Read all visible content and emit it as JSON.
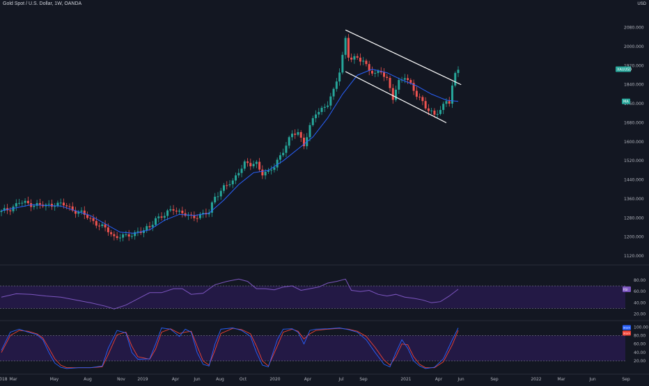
{
  "header": {
    "title": "Gold Spot / U.S. Dollar, 1W, OANDA",
    "currency": "USD"
  },
  "colors": {
    "background": "#131722",
    "up": "#26a69a",
    "down": "#ef5350",
    "ma": "#2962ff",
    "rsi_line": "#7e57c2",
    "rsi_band": "#311b62",
    "stoch_k": "#2962ff",
    "stoch_d": "#f44336",
    "channel": "#ffffff",
    "price_tag": "#26a69a"
  },
  "chart_data": [
    {
      "type": "candlestick",
      "title": "Gold Spot / U.S. Dollar, 1W, OANDA",
      "y_ticks": [
        "2080.000",
        "2000.000",
        "1920.000",
        "1840.000",
        "1760.000",
        "1680.000",
        "1600.000",
        "1520.000",
        "1440.000",
        "1360.000",
        "1280.000",
        "1200.000",
        "1120.000"
      ],
      "y_tick_values": [
        2080,
        2000,
        1920,
        1840,
        1760,
        1680,
        1600,
        1520,
        1440,
        1360,
        1280,
        1200,
        1120
      ],
      "ylim": [
        1085,
        2155
      ],
      "x_ticks": [
        "2018",
        "Mar",
        "May",
        "Aug",
        "Nov",
        "2019",
        "Apr",
        "Jun",
        "Aug",
        "Oct",
        "2020",
        "Apr",
        "Jul",
        "Sep",
        "2021",
        "Apr",
        "Jun",
        "Sep",
        "2022",
        "Mar",
        "Jun",
        "Sep"
      ],
      "close_path": [
        [
          0,
          1305
        ],
        [
          3,
          1320
        ],
        [
          6,
          1345
        ],
        [
          9,
          1340
        ],
        [
          12,
          1335
        ],
        [
          15,
          1330
        ],
        [
          18,
          1340
        ],
        [
          21,
          1335
        ],
        [
          24,
          1315
        ],
        [
          27,
          1300
        ],
        [
          30,
          1275
        ],
        [
          33,
          1250
        ],
        [
          36,
          1225
        ],
        [
          38,
          1200
        ],
        [
          40,
          1205
        ],
        [
          42,
          1200
        ],
        [
          44,
          1210
        ],
        [
          46,
          1225
        ],
        [
          48,
          1225
        ],
        [
          50,
          1240
        ],
        [
          52,
          1280
        ],
        [
          55,
          1290
        ],
        [
          58,
          1320
        ],
        [
          61,
          1300
        ],
        [
          64,
          1280
        ],
        [
          67,
          1295
        ],
        [
          70,
          1300
        ],
        [
          72,
          1370
        ],
        [
          75,
          1410
        ],
        [
          78,
          1430
        ],
        [
          80,
          1480
        ],
        [
          82,
          1510
        ],
        [
          84,
          1500
        ],
        [
          86,
          1510
        ],
        [
          88,
          1470
        ],
        [
          90,
          1470
        ],
        [
          92,
          1495
        ],
        [
          94,
          1545
        ],
        [
          96,
          1585
        ],
        [
          98,
          1630
        ],
        [
          100,
          1640
        ],
        [
          102,
          1590
        ],
        [
          104,
          1660
        ],
        [
          106,
          1720
        ],
        [
          108,
          1740
        ],
        [
          110,
          1760
        ],
        [
          112,
          1810
        ],
        [
          114,
          1900
        ],
        [
          115,
          1965
        ],
        [
          116,
          2035
        ],
        [
          117,
          1960
        ],
        [
          118,
          1945
        ],
        [
          120,
          1950
        ],
        [
          122,
          1945
        ],
        [
          124,
          1900
        ],
        [
          126,
          1880
        ],
        [
          128,
          1900
        ],
        [
          130,
          1865
        ],
        [
          132,
          1780
        ],
        [
          134,
          1850
        ],
        [
          136,
          1880
        ],
        [
          138,
          1840
        ],
        [
          140,
          1790
        ],
        [
          142,
          1770
        ],
        [
          144,
          1735
        ],
        [
          146,
          1710
        ],
        [
          148,
          1730
        ],
        [
          150,
          1780
        ],
        [
          151,
          1770
        ],
        [
          152,
          1830
        ],
        [
          153,
          1880
        ],
        [
          154,
          1905
        ]
      ],
      "ma_path": [
        [
          0,
          1310
        ],
        [
          10,
          1335
        ],
        [
          20,
          1330
        ],
        [
          30,
          1290
        ],
        [
          40,
          1220
        ],
        [
          45,
          1215
        ],
        [
          50,
          1230
        ],
        [
          55,
          1270
        ],
        [
          60,
          1295
        ],
        [
          65,
          1290
        ],
        [
          70,
          1300
        ],
        [
          75,
          1355
        ],
        [
          80,
          1420
        ],
        [
          85,
          1470
        ],
        [
          90,
          1480
        ],
        [
          95,
          1520
        ],
        [
          100,
          1570
        ],
        [
          105,
          1620
        ],
        [
          110,
          1700
        ],
        [
          115,
          1800
        ],
        [
          120,
          1880
        ],
        [
          125,
          1905
        ],
        [
          130,
          1890
        ],
        [
          135,
          1860
        ],
        [
          140,
          1835
        ],
        [
          145,
          1800
        ],
        [
          150,
          1775
        ],
        [
          154,
          1770
        ]
      ],
      "channel_upper": [
        [
          116,
          2070
        ],
        [
          155,
          1840
        ]
      ],
      "channel_lower": [
        [
          116,
          1895
        ],
        [
          150,
          1680
        ]
      ],
      "price_tag": "XAUUSD",
      "ma_tag": "MA"
    },
    {
      "type": "line",
      "name": "RSI",
      "y_ticks": [
        "80.00",
        "60.00",
        "40.00",
        "20.00"
      ],
      "y_tick_values": [
        80,
        60,
        40,
        20
      ],
      "ylim": [
        12,
        96
      ],
      "band": [
        30,
        70
      ],
      "values_path": [
        [
          0,
          50
        ],
        [
          5,
          56
        ],
        [
          10,
          55
        ],
        [
          15,
          52
        ],
        [
          20,
          50
        ],
        [
          25,
          45
        ],
        [
          30,
          40
        ],
        [
          35,
          34
        ],
        [
          38,
          29
        ],
        [
          42,
          36
        ],
        [
          46,
          47
        ],
        [
          50,
          58
        ],
        [
          54,
          58
        ],
        [
          58,
          65
        ],
        [
          61,
          65
        ],
        [
          64,
          55
        ],
        [
          68,
          57
        ],
        [
          72,
          72
        ],
        [
          76,
          78
        ],
        [
          80,
          82
        ],
        [
          83,
          78
        ],
        [
          86,
          65
        ],
        [
          89,
          65
        ],
        [
          92,
          63
        ],
        [
          95,
          68
        ],
        [
          98,
          70
        ],
        [
          101,
          62
        ],
        [
          104,
          65
        ],
        [
          107,
          68
        ],
        [
          110,
          75
        ],
        [
          113,
          78
        ],
        [
          116,
          82
        ],
        [
          118,
          62
        ],
        [
          121,
          60
        ],
        [
          124,
          62
        ],
        [
          127,
          55
        ],
        [
          130,
          52
        ],
        [
          133,
          55
        ],
        [
          136,
          50
        ],
        [
          139,
          48
        ],
        [
          142,
          45
        ],
        [
          145,
          40
        ],
        [
          148,
          42
        ],
        [
          151,
          52
        ],
        [
          154,
          64
        ]
      ],
      "tag": "RSI"
    },
    {
      "type": "line",
      "name": "Stoch",
      "y_ticks": [
        "100.00",
        "80.00",
        "60.00",
        "40.00",
        "20.00"
      ],
      "y_tick_values": [
        100,
        80,
        60,
        40,
        20
      ],
      "ylim": [
        -8,
        107
      ],
      "band": [
        20,
        80
      ],
      "k_path": [
        [
          0,
          45
        ],
        [
          3,
          88
        ],
        [
          6,
          95
        ],
        [
          9,
          88
        ],
        [
          12,
          82
        ],
        [
          14,
          70
        ],
        [
          16,
          40
        ],
        [
          18,
          15
        ],
        [
          20,
          5
        ],
        [
          22,
          2
        ],
        [
          26,
          4
        ],
        [
          30,
          4
        ],
        [
          34,
          8
        ],
        [
          36,
          50
        ],
        [
          39,
          92
        ],
        [
          42,
          86
        ],
        [
          44,
          40
        ],
        [
          46,
          24
        ],
        [
          50,
          25
        ],
        [
          52,
          60
        ],
        [
          54,
          98
        ],
        [
          57,
          95
        ],
        [
          60,
          78
        ],
        [
          62,
          95
        ],
        [
          64,
          88
        ],
        [
          66,
          40
        ],
        [
          68,
          12
        ],
        [
          70,
          8
        ],
        [
          72,
          60
        ],
        [
          74,
          95
        ],
        [
          78,
          98
        ],
        [
          81,
          92
        ],
        [
          84,
          78
        ],
        [
          86,
          40
        ],
        [
          88,
          10
        ],
        [
          90,
          6
        ],
        [
          93,
          70
        ],
        [
          95,
          95
        ],
        [
          98,
          96
        ],
        [
          100,
          88
        ],
        [
          102,
          60
        ],
        [
          104,
          92
        ],
        [
          106,
          95
        ],
        [
          110,
          96
        ],
        [
          114,
          98
        ],
        [
          117,
          94
        ],
        [
          120,
          88
        ],
        [
          123,
          70
        ],
        [
          126,
          40
        ],
        [
          129,
          12
        ],
        [
          131,
          6
        ],
        [
          133,
          40
        ],
        [
          135,
          70
        ],
        [
          137,
          50
        ],
        [
          139,
          20
        ],
        [
          141,
          8
        ],
        [
          143,
          2
        ],
        [
          146,
          5
        ],
        [
          149,
          25
        ],
        [
          152,
          70
        ],
        [
          154,
          98
        ]
      ],
      "d_path": [
        [
          0,
          40
        ],
        [
          3,
          80
        ],
        [
          6,
          92
        ],
        [
          9,
          90
        ],
        [
          12,
          84
        ],
        [
          14,
          74
        ],
        [
          16,
          50
        ],
        [
          18,
          25
        ],
        [
          20,
          10
        ],
        [
          22,
          4
        ],
        [
          26,
          4
        ],
        [
          30,
          4
        ],
        [
          34,
          6
        ],
        [
          36,
          35
        ],
        [
          39,
          82
        ],
        [
          42,
          88
        ],
        [
          44,
          55
        ],
        [
          46,
          30
        ],
        [
          50,
          24
        ],
        [
          52,
          48
        ],
        [
          54,
          88
        ],
        [
          57,
          96
        ],
        [
          60,
          85
        ],
        [
          62,
          88
        ],
        [
          64,
          90
        ],
        [
          66,
          55
        ],
        [
          68,
          20
        ],
        [
          70,
          10
        ],
        [
          72,
          45
        ],
        [
          74,
          85
        ],
        [
          78,
          97
        ],
        [
          81,
          94
        ],
        [
          84,
          84
        ],
        [
          86,
          55
        ],
        [
          88,
          20
        ],
        [
          90,
          8
        ],
        [
          93,
          55
        ],
        [
          95,
          88
        ],
        [
          98,
          95
        ],
        [
          100,
          90
        ],
        [
          102,
          72
        ],
        [
          104,
          84
        ],
        [
          106,
          92
        ],
        [
          110,
          95
        ],
        [
          114,
          97
        ],
        [
          117,
          95
        ],
        [
          120,
          90
        ],
        [
          123,
          78
        ],
        [
          126,
          52
        ],
        [
          129,
          22
        ],
        [
          131,
          10
        ],
        [
          133,
          30
        ],
        [
          135,
          60
        ],
        [
          137,
          58
        ],
        [
          139,
          30
        ],
        [
          141,
          12
        ],
        [
          143,
          4
        ],
        [
          146,
          4
        ],
        [
          149,
          18
        ],
        [
          152,
          58
        ],
        [
          154,
          92
        ]
      ],
      "tags": [
        "Stoch",
        "Stoch"
      ]
    }
  ]
}
